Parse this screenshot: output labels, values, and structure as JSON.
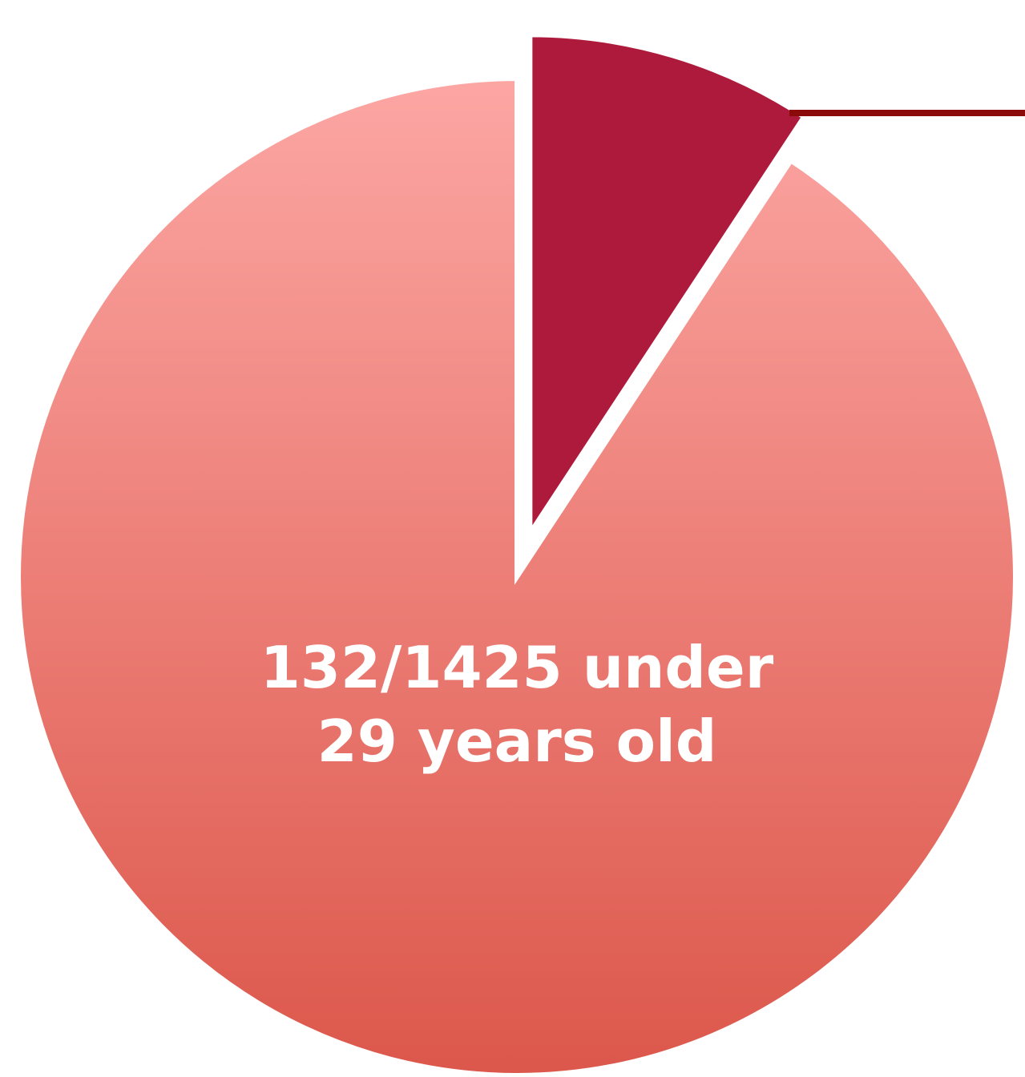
{
  "chart_data": {
    "type": "pie",
    "values": [
      132,
      1293
    ],
    "colors": [
      "#ad1a3c",
      "#f08a84"
    ],
    "annotation": [
      "132/1425 under",
      "29 years old"
    ]
  }
}
